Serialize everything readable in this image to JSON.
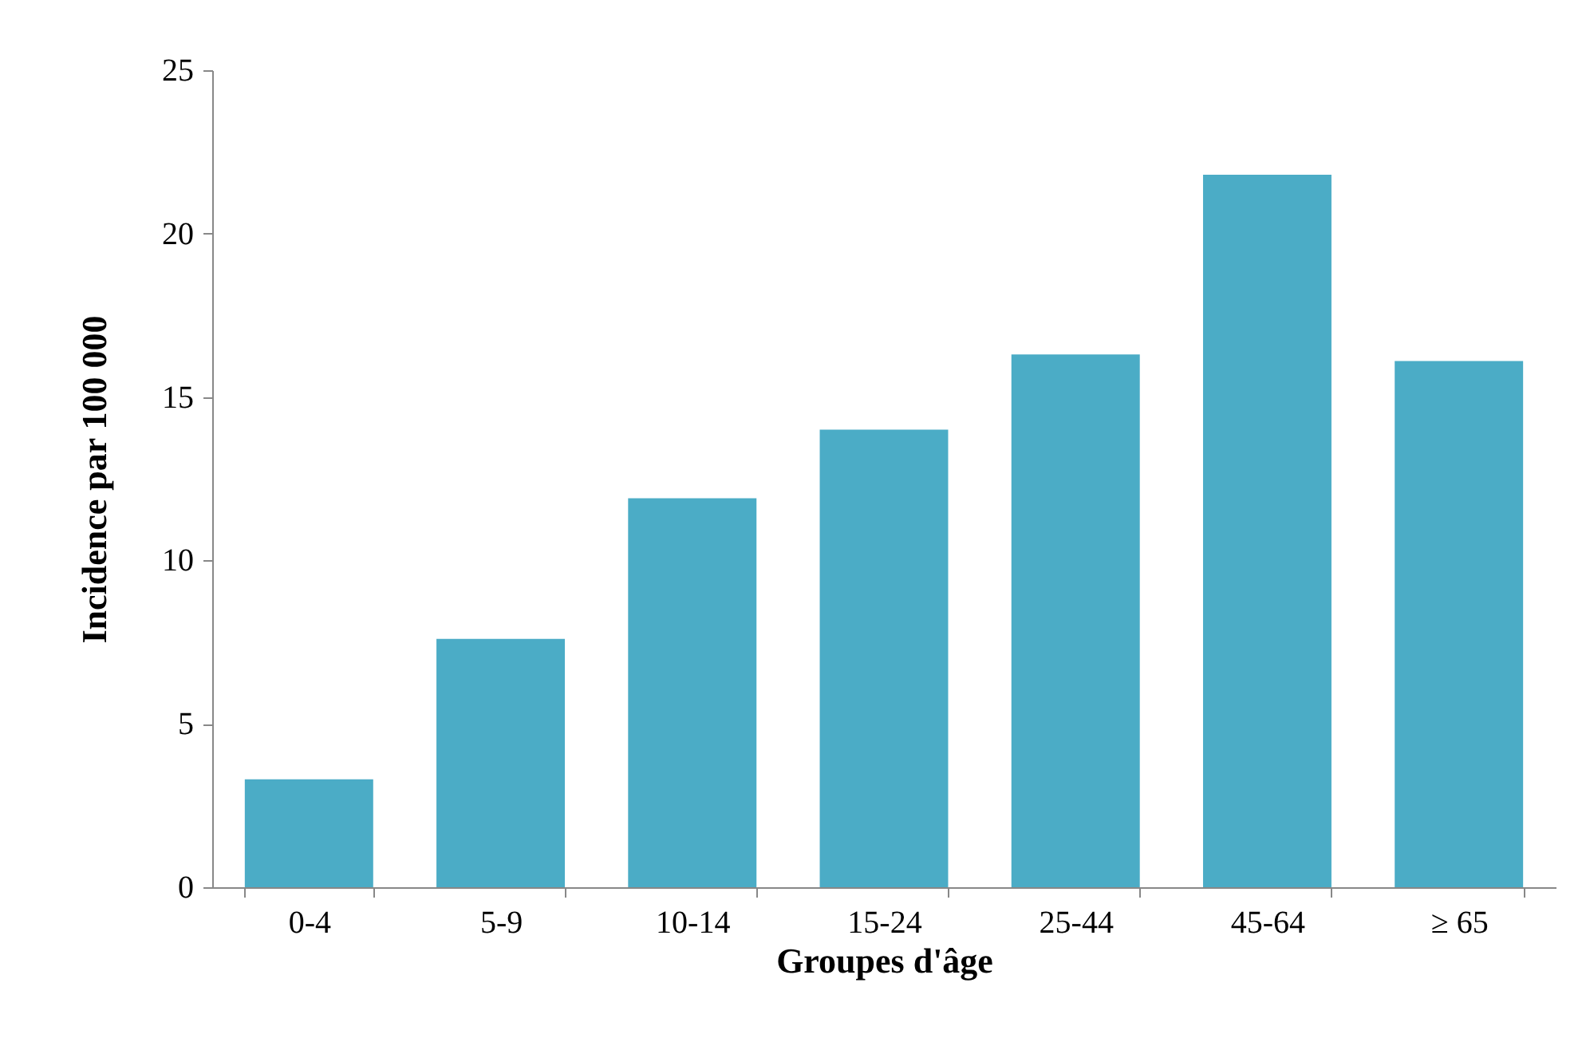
{
  "chart_data": {
    "type": "bar",
    "xlabel": "Groupes d'âge",
    "ylabel": "Incidence par 100 000",
    "categories": [
      "0-4",
      "5-9",
      "10-14",
      "15-24",
      "25-44",
      "45-64",
      "≥ 65"
    ],
    "values": [
      3.3,
      7.6,
      11.9,
      14.0,
      16.3,
      21.8,
      16.1
    ],
    "color": "#4bacc6",
    "ylim": [
      0,
      25
    ],
    "yticks": [
      0,
      5,
      10,
      15,
      20,
      25
    ],
    "grid": false
  }
}
